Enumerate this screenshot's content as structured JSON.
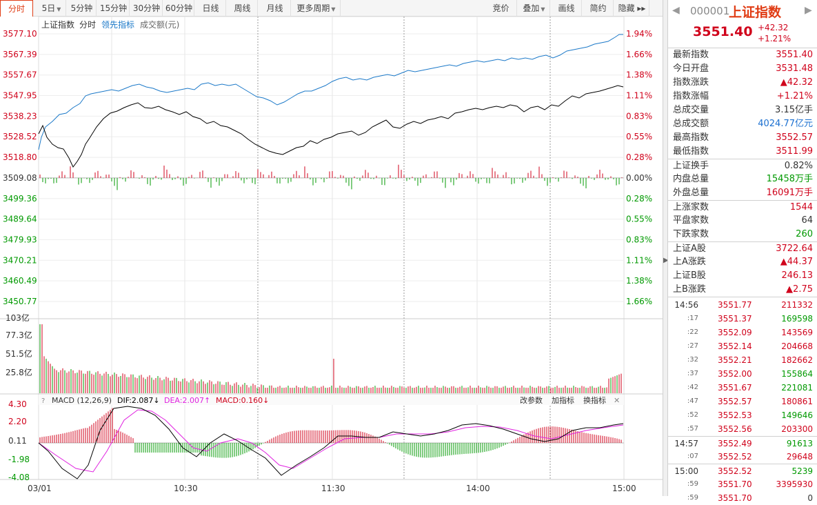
{
  "toolbar": {
    "items": [
      {
        "label": "分时",
        "active": true
      },
      {
        "label": "5日",
        "caret": true
      },
      {
        "label": "5分钟"
      },
      {
        "label": "15分钟"
      },
      {
        "label": "30分钟"
      },
      {
        "label": "60分钟"
      },
      {
        "label": "日线"
      },
      {
        "label": "周线"
      },
      {
        "label": "月线"
      },
      {
        "label": "更多周期",
        "caret": true
      },
      {
        "label": "竞价"
      },
      {
        "label": "叠加",
        "caret": true
      },
      {
        "label": "画线"
      },
      {
        "label": "简约"
      },
      {
        "label": "隐藏 ▸▸"
      }
    ]
  },
  "chart": {
    "legend": {
      "index": "上证指数",
      "mode": "分时",
      "leading": "领先指标",
      "turnover": "成交额(元)"
    },
    "price_axis": [
      "3577.10",
      "3567.39",
      "3557.67",
      "3547.95",
      "3538.23",
      "3528.52",
      "3518.80",
      "3509.08",
      "3499.36",
      "3489.64",
      "3479.93",
      "3470.21",
      "3460.49",
      "3450.77"
    ],
    "pct_axis": [
      "1.94%",
      "1.66%",
      "1.38%",
      "1.11%",
      "0.83%",
      "0.55%",
      "0.28%",
      "0.00%",
      "0.28%",
      "0.55%",
      "0.83%",
      "1.11%",
      "1.38%",
      "1.66%"
    ],
    "volume_axis": [
      "103亿",
      "77.3亿",
      "51.5亿",
      "25.8亿"
    ],
    "macd_axis": [
      "4.30",
      "2.20",
      "0.11",
      "-1.98",
      "-4.08"
    ],
    "macd_legend": {
      "name": "MACD (12,26,9)",
      "dif": "DIF:2.087↓",
      "dea": "DEA:2.007↑",
      "macd": "MACD:0.160↓"
    },
    "macd_links": {
      "params": "改参数",
      "add": "加指标",
      "swap": "换指标",
      "close": "✕"
    },
    "time_axis": [
      "03/01",
      "10:30",
      "11:30",
      "14:00",
      "15:00"
    ],
    "colors": {
      "price": "#000000",
      "leading": "#1a78c8",
      "up": "#d0021b",
      "down": "#009900",
      "dif": "#000000",
      "dea": "#e020e0"
    }
  },
  "panel": {
    "code": "000001",
    "name": "上证指数",
    "price": "3551.40",
    "change": "+42.32",
    "change_pct": "+1.21%",
    "stats1": [
      {
        "k": "最新指数",
        "v": "3551.40",
        "c": "red"
      },
      {
        "k": "今日开盘",
        "v": "3531.48",
        "c": "red"
      },
      {
        "k": "指数涨跌",
        "v": "▲42.32",
        "c": "red"
      },
      {
        "k": "指数涨幅",
        "v": "+1.21%",
        "c": "red"
      },
      {
        "k": "总成交量",
        "v": "3.15亿手",
        "c": "black"
      },
      {
        "k": "总成交额",
        "v": "4024.77亿元",
        "c": "blue"
      },
      {
        "k": "最高指数",
        "v": "3552.57",
        "c": "red"
      },
      {
        "k": "最低指数",
        "v": "3511.99",
        "c": "red"
      }
    ],
    "stats2": [
      {
        "k": "上证换手",
        "v": "0.82%",
        "c": "black"
      },
      {
        "k": "内盘总量",
        "v": "15458万手",
        "c": "green"
      },
      {
        "k": "外盘总量",
        "v": "16091万手",
        "c": "red"
      }
    ],
    "stats3": [
      {
        "k": "上涨家数",
        "v": "1544",
        "c": "red"
      },
      {
        "k": "平盘家数",
        "v": "64",
        "c": "black"
      },
      {
        "k": "下跌家数",
        "v": "260",
        "c": "green"
      }
    ],
    "stats4": [
      {
        "k": "上证A股",
        "v": "3722.64",
        "c": "red"
      },
      {
        "k": "上A涨跌",
        "v": "▲44.37",
        "c": "red"
      },
      {
        "k": "上证B股",
        "v": "246.13",
        "c": "red"
      },
      {
        "k": "上B涨跌",
        "v": "▲2.75",
        "c": "red"
      }
    ],
    "ticks": [
      {
        "t": "14:56",
        "small": false,
        "p": "3551.77",
        "v": "211332",
        "c": "red"
      },
      {
        "t": ":17",
        "small": true,
        "p": "3551.37",
        "v": "169598",
        "c": "green"
      },
      {
        "t": ":22",
        "small": true,
        "p": "3552.09",
        "v": "143569",
        "c": "red"
      },
      {
        "t": ":27",
        "small": true,
        "p": "3552.14",
        "v": "204668",
        "c": "red"
      },
      {
        "t": ":32",
        "small": true,
        "p": "3552.21",
        "v": "182662",
        "c": "red"
      },
      {
        "t": ":37",
        "small": true,
        "p": "3552.00",
        "v": "155864",
        "c": "green"
      },
      {
        "t": ":42",
        "small": true,
        "p": "3551.67",
        "v": "221081",
        "c": "green"
      },
      {
        "t": ":47",
        "small": true,
        "p": "3552.57",
        "v": "180861",
        "c": "red"
      },
      {
        "t": ":52",
        "small": true,
        "p": "3552.53",
        "v": "149646",
        "c": "green"
      },
      {
        "t": ":57",
        "small": true,
        "p": "3552.56",
        "v": "203300",
        "c": "red"
      },
      {
        "t": "14:57",
        "small": false,
        "p": "3552.49",
        "v": "91613",
        "c": "green",
        "sep": true
      },
      {
        "t": ":07",
        "small": true,
        "p": "3552.52",
        "v": "29648",
        "c": "red"
      },
      {
        "t": "15:00",
        "small": false,
        "p": "3552.52",
        "v": "5239",
        "c": "green",
        "sep": true
      },
      {
        "t": ":59",
        "small": true,
        "p": "3551.70",
        "v": "3395930",
        "c": "red"
      },
      {
        "t": ":59",
        "small": true,
        "p": "3551.70",
        "v": "0",
        "c": "black"
      }
    ]
  }
}
